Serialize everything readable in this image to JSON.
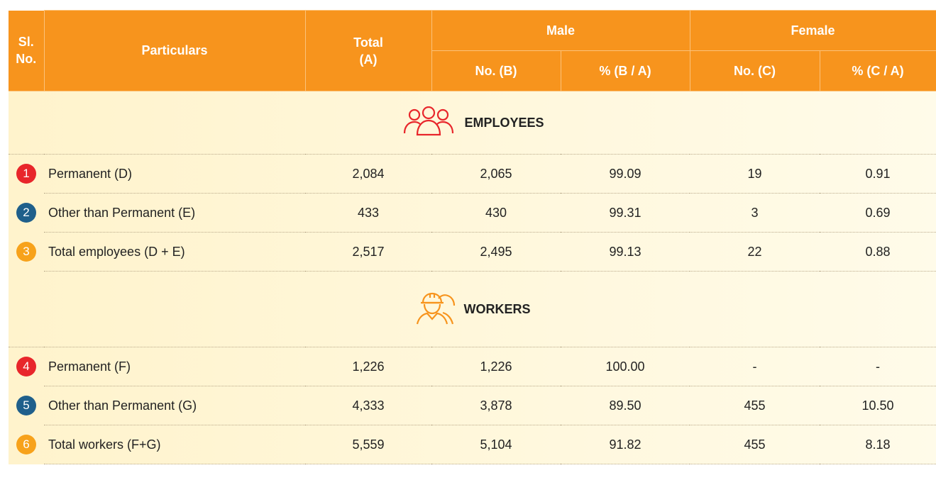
{
  "header": {
    "sl_no": "Sl. No.",
    "particulars": "Particulars",
    "total": "Total (A)",
    "male": "Male",
    "male_no": "No. (B)",
    "male_pct": "% (B / A)",
    "female": "Female",
    "female_no": "No. (C)",
    "female_pct": "% (C / A)"
  },
  "sections": [
    {
      "title": "EMPLOYEES",
      "rows": [
        {
          "no": "1",
          "particulars": "Permanent (D)",
          "cells": [
            "2,084",
            "2,065",
            "99.09",
            "19",
            "0.91"
          ]
        },
        {
          "no": "2",
          "particulars": "Other than Permanent (E)",
          "cells": [
            "433",
            "430",
            "99.31",
            "3",
            "0.69"
          ]
        },
        {
          "no": "3",
          "particulars": "Total employees (D + E)",
          "cells": [
            "2,517",
            "2,495",
            "99.13",
            "22",
            "0.88"
          ]
        }
      ]
    },
    {
      "title": "WORKERS",
      "rows": [
        {
          "no": "4",
          "particulars": "Permanent (F)",
          "cells": [
            "1,226",
            "1,226",
            "100.00",
            "-",
            "-"
          ]
        },
        {
          "no": "5",
          "particulars": "Other than Permanent (G)",
          "cells": [
            "4,333",
            "3,878",
            "89.50",
            "455",
            "10.50"
          ]
        },
        {
          "no": "6",
          "particulars": "Total workers (F+G)",
          "cells": [
            "5,559",
            "5,104",
            "91.82",
            "455",
            "8.18"
          ]
        }
      ]
    }
  ]
}
